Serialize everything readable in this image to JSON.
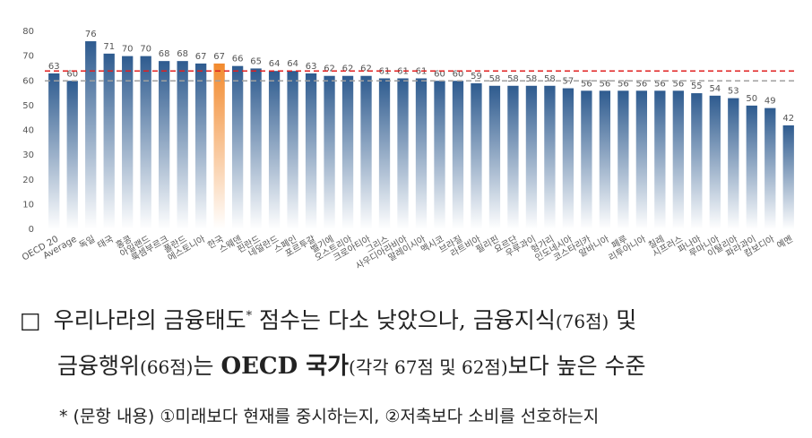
{
  "chart_data": {
    "type": "bar",
    "categories": [
      "OECD 20",
      "Average",
      "독일",
      "태국",
      "홍콩",
      "아일랜드",
      "룩셈부르크",
      "폴란드",
      "에스토니아",
      "한국",
      "스웨덴",
      "핀란드",
      "네덜란드",
      "스페인",
      "포르투갈",
      "벨기에",
      "오스트리아",
      "크로아티아",
      "그리스",
      "사우디아라비아",
      "말레이시아",
      "멕시코",
      "브라질",
      "라트비아",
      "필리핀",
      "요르단",
      "우루과이",
      "헝가리",
      "인도네시아",
      "코스타리카",
      "알바니아",
      "페루",
      "리투아니아",
      "칠레",
      "시프러스",
      "파나마",
      "루마니아",
      "이탈리아",
      "파라과이",
      "캄보디아",
      "예멘"
    ],
    "values": [
      63,
      60,
      76,
      71,
      70,
      70,
      68,
      68,
      67,
      67,
      66,
      65,
      64,
      64,
      63,
      62,
      62,
      62,
      61,
      61,
      61,
      60,
      60,
      59,
      58,
      58,
      58,
      58,
      57,
      56,
      56,
      56,
      56,
      56,
      56,
      55,
      54,
      53,
      50,
      49,
      42
    ],
    "color": "#2e5b8f",
    "highlight_color": "#f28a2e",
    "highlight_index": 9,
    "reference_lines": [
      {
        "value": 64,
        "color": "#e02020"
      },
      {
        "value": 60,
        "color": "#a0a0a0"
      }
    ],
    "ylim": [
      0,
      80
    ],
    "yticks": [
      0,
      10,
      20,
      30,
      40,
      50,
      60,
      70,
      80
    ],
    "grid": false
  },
  "text": {
    "bullet": "□",
    "line1a": "우리나라의 금융태도",
    "sup": "*",
    "line1b": " 점수는 다소 낮았으나, 금융지식",
    "line1c": "(76점)",
    "line1d": " 및",
    "line2a": "금융행위",
    "line2b": "(66점)",
    "line2c": "는 ",
    "line2d": "OECD 국가",
    "line2e": "(각각 67점 및 62점)",
    "line2f": "보다 높은 수준",
    "note": "* (문항 내용) ①미래보다 현재를 중시하는지, ②저축보다 소비를 선호하는지"
  }
}
